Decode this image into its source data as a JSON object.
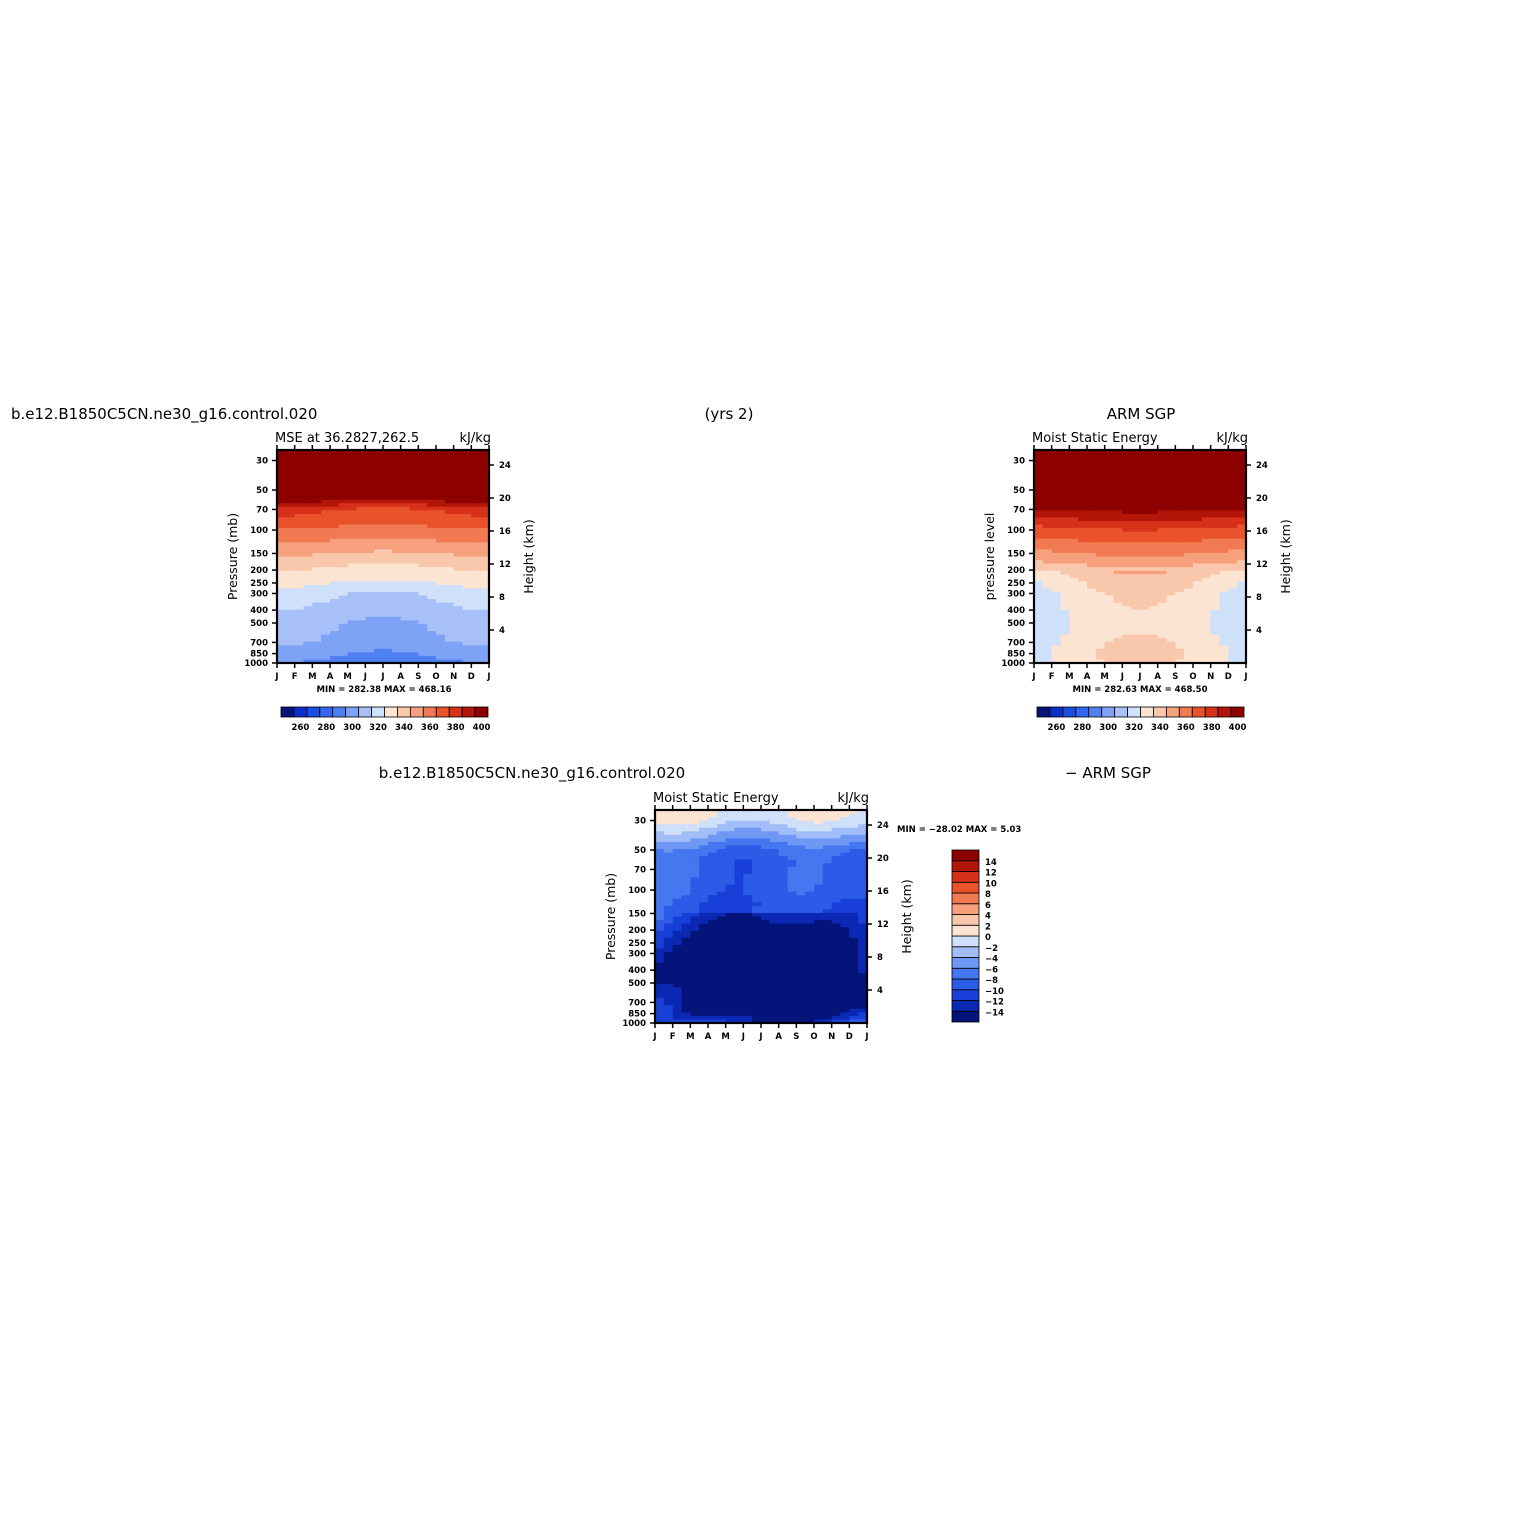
{
  "figure": {
    "header_left": "b.e12.B1850C5CN.ne30_g16.control.020",
    "header_center": "(yrs 2)",
    "header_right": "ARM SGP",
    "bottom_header_left": "b.e12.B1850C5CN.ne30_g16.control.020",
    "bottom_header_right": "− ARM SGP"
  },
  "chart_data": [
    {
      "type": "heatmap",
      "title_left": "MSE at 36.2827,262.5",
      "title_right": "kJ/kg",
      "ylabel": "Pressure (mb)",
      "ylabel_right": "Height (km)",
      "x_tick_labels": [
        "J",
        "F",
        "M",
        "A",
        "M",
        "J",
        "J",
        "A",
        "S",
        "O",
        "N",
        "D",
        "J"
      ],
      "pressure_ticks": [
        30,
        50,
        70,
        100,
        150,
        200,
        250,
        300,
        400,
        500,
        700,
        850,
        1000
      ],
      "height_ticks": [
        4,
        8,
        12,
        16,
        20,
        24
      ],
      "y_scale": "log",
      "ylim": [
        1000,
        25
      ],
      "min_max_text": "MIN = 282.38  MAX = 468.16",
      "colorbar": {
        "orientation": "horizontal",
        "levels": [
          250,
          260,
          270,
          280,
          290,
          300,
          310,
          320,
          330,
          340,
          350,
          360,
          370,
          380,
          390,
          400
        ],
        "tick_labels": [
          "260",
          "280",
          "300",
          "320",
          "340",
          "360",
          "380",
          "400"
        ],
        "colors": [
          "#04147a",
          "#0a30c8",
          "#1b4de2",
          "#3267ed",
          "#4e80f2",
          "#7ea2f5",
          "#a7c1f8",
          "#cfe0fb",
          "#fbe4d2",
          "#f9c7ab",
          "#f6a07e",
          "#f27a52",
          "#ea522c",
          "#d7311a",
          "#b31609",
          "#8c0000"
        ]
      },
      "profile": {
        "pressure": [
          25,
          30,
          40,
          50,
          60,
          70,
          85,
          100,
          125,
          150,
          175,
          200,
          250,
          300,
          400,
          500,
          600,
          700,
          850,
          1000
        ],
        "mse": [
          470,
          460,
          440,
          425,
          405,
          385,
          375,
          367,
          358,
          350,
          343,
          338,
          330,
          322,
          316,
          312,
          310,
          308,
          302,
          296
        ]
      }
    },
    {
      "type": "heatmap",
      "title_center": "ARM SGP",
      "title_left": "Moist Static Energy",
      "title_right": "kJ/kg",
      "ylabel": "pressure level",
      "ylabel_right": "Height (km)",
      "x_tick_labels": [
        "J",
        "F",
        "M",
        "A",
        "M",
        "J",
        "J",
        "A",
        "S",
        "O",
        "N",
        "D",
        "J"
      ],
      "pressure_ticks": [
        30,
        50,
        70,
        100,
        150,
        200,
        250,
        300,
        400,
        500,
        700,
        850,
        1000
      ],
      "height_ticks": [
        4,
        8,
        12,
        16,
        20,
        24
      ],
      "y_scale": "log",
      "ylim": [
        1000,
        25
      ],
      "min_max_text": "MIN = 282.63  MAX = 468.50",
      "colorbar": {
        "orientation": "horizontal",
        "levels": [
          250,
          260,
          270,
          280,
          290,
          300,
          310,
          320,
          330,
          340,
          350,
          360,
          370,
          380,
          390,
          400
        ],
        "tick_labels": [
          "260",
          "280",
          "300",
          "320",
          "340",
          "360",
          "380",
          "400"
        ],
        "colors": [
          "#04147a",
          "#0a30c8",
          "#1b4de2",
          "#3267ed",
          "#4e80f2",
          "#7ea2f5",
          "#a7c1f8",
          "#cfe0fb",
          "#fbe4d2",
          "#f9c7ab",
          "#f6a07e",
          "#f27a52",
          "#ea522c",
          "#d7311a",
          "#b31609",
          "#8c0000"
        ]
      },
      "profile": {
        "pressure": [
          25,
          30,
          40,
          50,
          60,
          70,
          85,
          100,
          125,
          150,
          175,
          200,
          250,
          300,
          400,
          500,
          600,
          700,
          850,
          1000
        ],
        "mse": [
          470,
          460,
          442,
          430,
          415,
          398,
          385,
          375,
          365,
          357,
          349,
          342,
          336,
          332,
          330,
          329,
          330,
          332,
          334,
          332
        ]
      }
    },
    {
      "type": "heatmap",
      "title_left": "Moist Static Energy",
      "title_right": "kJ/kg",
      "ylabel": "Pressure (mb)",
      "ylabel_right": "Height (km)",
      "x_tick_labels": [
        "J",
        "F",
        "M",
        "A",
        "M",
        "J",
        "J",
        "A",
        "S",
        "O",
        "N",
        "D",
        "J"
      ],
      "pressure_ticks": [
        30,
        50,
        70,
        100,
        150,
        200,
        250,
        300,
        400,
        500,
        700,
        850,
        1000
      ],
      "height_ticks": [
        4,
        8,
        12,
        16,
        20,
        24
      ],
      "y_scale": "log",
      "ylim": [
        1000,
        25
      ],
      "min_max_text": "MIN = −28.02 MAX =    5.03",
      "colorbar": {
        "orientation": "vertical",
        "levels": [
          -16,
          -14,
          -12,
          -10,
          -8,
          -6,
          -4,
          -2,
          0,
          2,
          4,
          6,
          8,
          10,
          12,
          14,
          16
        ],
        "tick_labels": [
          "−14",
          "−12",
          "−10",
          "−8",
          "−6",
          "−4",
          "−2",
          "0",
          "2",
          "4",
          "6",
          "8",
          "10",
          "12",
          "14"
        ],
        "colors": [
          "#04147a",
          "#0a28b4",
          "#1840d8",
          "#2c5be8",
          "#4577f0",
          "#6f97f4",
          "#a0bdf7",
          "#cfe0fb",
          "#fbe4d2",
          "#f9c7ab",
          "#f6a07e",
          "#f27a52",
          "#ea522c",
          "#d7311a",
          "#b31609",
          "#8c0000"
        ]
      },
      "profile": {
        "pressure": [
          25,
          30,
          40,
          50,
          60,
          70,
          85,
          100,
          125,
          150,
          175,
          200,
          250,
          300,
          400,
          500,
          600,
          700,
          850,
          1000
        ],
        "diff": [
          1,
          0,
          -4,
          -7,
          -8,
          -8,
          -8,
          -8,
          -9,
          -9,
          -10,
          -11,
          -12,
          -13,
          -14,
          -14,
          -14,
          -13,
          -11,
          -9
        ]
      }
    }
  ]
}
